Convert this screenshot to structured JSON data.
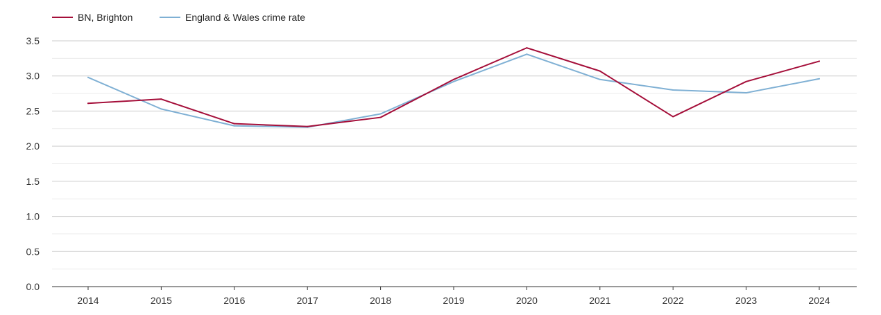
{
  "chart_data": {
    "type": "line",
    "title": "",
    "xlabel": "",
    "ylabel": "",
    "categories": [
      "2014",
      "2015",
      "2016",
      "2017",
      "2018",
      "2019",
      "2020",
      "2021",
      "2022",
      "2023",
      "2024"
    ],
    "series": [
      {
        "name": "BN, Brighton",
        "color": "#a50f3a",
        "values": [
          2.61,
          2.67,
          2.32,
          2.28,
          2.41,
          2.95,
          3.4,
          3.07,
          2.42,
          2.92,
          3.21
        ]
      },
      {
        "name": "England & Wales crime rate",
        "color": "#7fb0d4",
        "values": [
          2.98,
          2.53,
          2.29,
          2.27,
          2.46,
          2.92,
          3.31,
          2.95,
          2.8,
          2.76,
          2.96
        ]
      }
    ],
    "ylim": [
      0,
      3.5
    ],
    "yticks": [
      "0.0",
      "0.5",
      "1.0",
      "1.5",
      "2.0",
      "2.5",
      "3.0",
      "3.5"
    ],
    "grid": true,
    "legend_position": "top-left"
  }
}
